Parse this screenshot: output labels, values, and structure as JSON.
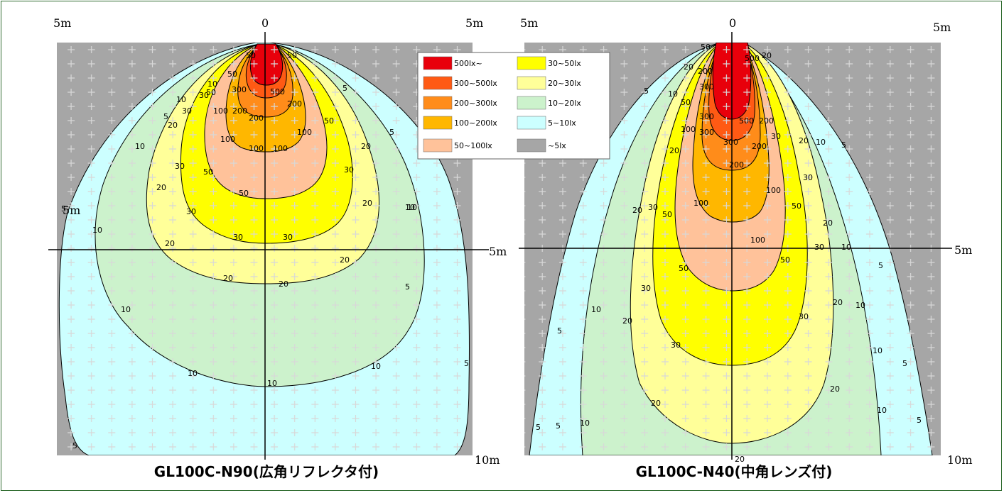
{
  "chart_data": [
    {
      "type": "heatmap",
      "title": "GL100C-N90(広角リフレクタ付)",
      "axis_labels": {
        "top_left": "5m",
        "top_center": "0",
        "top_right": "5m",
        "mid_right": "5m",
        "bottom_right": "10m",
        "mid_left": "5m"
      },
      "x_range_m": [
        -5,
        5
      ],
      "y_range_m": [
        0,
        10
      ],
      "contour_levels_lx": [
        5,
        10,
        20,
        30,
        50,
        100,
        200,
        300,
        500
      ],
      "contour_labels": [
        {
          "v": "50"
        },
        {
          "v": "50"
        },
        {
          "v": "10"
        },
        {
          "v": "10"
        },
        {
          "v": "5"
        },
        {
          "v": "5"
        },
        {
          "v": "20"
        },
        {
          "v": "30"
        },
        {
          "v": "30"
        },
        {
          "v": "50"
        },
        {
          "v": "50"
        },
        {
          "v": "100"
        },
        {
          "v": "200"
        },
        {
          "v": "300"
        },
        {
          "v": "500"
        },
        {
          "v": "200"
        },
        {
          "v": "200"
        },
        {
          "v": "100"
        },
        {
          "v": "100"
        },
        {
          "v": "100"
        },
        {
          "v": "100"
        },
        {
          "v": "30"
        },
        {
          "v": "20"
        },
        {
          "v": "10"
        },
        {
          "v": "10"
        },
        {
          "v": "5"
        },
        {
          "v": "50"
        },
        {
          "v": "30"
        },
        {
          "v": "50"
        },
        {
          "v": "50"
        },
        {
          "v": "30"
        },
        {
          "v": "30"
        },
        {
          "v": "20"
        },
        {
          "v": "10"
        },
        {
          "v": "10"
        },
        {
          "v": "20"
        },
        {
          "v": "20"
        },
        {
          "v": "20"
        },
        {
          "v": "20"
        },
        {
          "v": "10"
        },
        {
          "v": "10"
        },
        {
          "v": "10"
        },
        {
          "v": "10"
        },
        {
          "v": "5"
        },
        {
          "v": "5"
        },
        {
          "v": "5"
        },
        {
          "v": "5"
        },
        {
          "v": "20"
        },
        {
          "v": "30"
        }
      ]
    },
    {
      "type": "heatmap",
      "title": "GL100C-N40(中角レンズ付)",
      "axis_labels": {
        "top_left": "5m",
        "top_center": "0",
        "top_right": "5m",
        "mid_right": "5m",
        "bottom_right": "10m"
      },
      "x_range_m": [
        -5,
        5
      ],
      "y_range_m": [
        0,
        10
      ],
      "contour_levels_lx": [
        5,
        10,
        20,
        30,
        50,
        100,
        200,
        300,
        500
      ],
      "contour_labels": [
        {
          "v": "50"
        },
        {
          "v": "20"
        },
        {
          "v": "200"
        },
        {
          "v": "300"
        },
        {
          "v": "500"
        },
        {
          "v": "20"
        },
        {
          "v": "5"
        },
        {
          "v": "10"
        },
        {
          "v": "50"
        },
        {
          "v": "300"
        },
        {
          "v": "500"
        },
        {
          "v": "200"
        },
        {
          "v": "100"
        },
        {
          "v": "300"
        },
        {
          "v": "300"
        },
        {
          "v": "200"
        },
        {
          "v": "20"
        },
        {
          "v": "10"
        },
        {
          "v": "5"
        },
        {
          "v": "30"
        },
        {
          "v": "200"
        },
        {
          "v": "100"
        },
        {
          "v": "50"
        },
        {
          "v": "20"
        },
        {
          "v": "30"
        },
        {
          "v": "50"
        },
        {
          "v": "100"
        },
        {
          "v": "100"
        },
        {
          "v": "30"
        },
        {
          "v": "20"
        },
        {
          "v": "20"
        },
        {
          "v": "5"
        },
        {
          "v": "10"
        },
        {
          "v": "30"
        },
        {
          "v": "50"
        },
        {
          "v": "50"
        },
        {
          "v": "30"
        },
        {
          "v": "10"
        },
        {
          "v": "5"
        },
        {
          "v": "10"
        },
        {
          "v": "20"
        },
        {
          "v": "30"
        },
        {
          "v": "20"
        },
        {
          "v": "10"
        },
        {
          "v": "5"
        },
        {
          "v": "5"
        },
        {
          "v": "20"
        },
        {
          "v": "20"
        },
        {
          "v": "30"
        },
        {
          "v": "10"
        },
        {
          "v": "5"
        },
        {
          "v": "20"
        },
        {
          "v": "10"
        },
        {
          "v": "5"
        }
      ]
    }
  ],
  "legend": [
    {
      "label": "500lx~",
      "color": "#e8000b"
    },
    {
      "label": "300~500lx",
      "color": "#ff5a14"
    },
    {
      "label": "200~300lx",
      "color": "#ff8c1a"
    },
    {
      "label": "100~200lx",
      "color": "#ffb700"
    },
    {
      "label": "50~100lx",
      "color": "#ffc29a"
    },
    {
      "label": "30~50lx",
      "color": "#ffff00"
    },
    {
      "label": "20~30lx",
      "color": "#ffff99"
    },
    {
      "label": "10~20lx",
      "color": "#ccf2cc"
    },
    {
      "label": "5~10lx",
      "color": "#ccffff"
    },
    {
      "label": "~5lx",
      "color": "#a6a6a6"
    }
  ]
}
